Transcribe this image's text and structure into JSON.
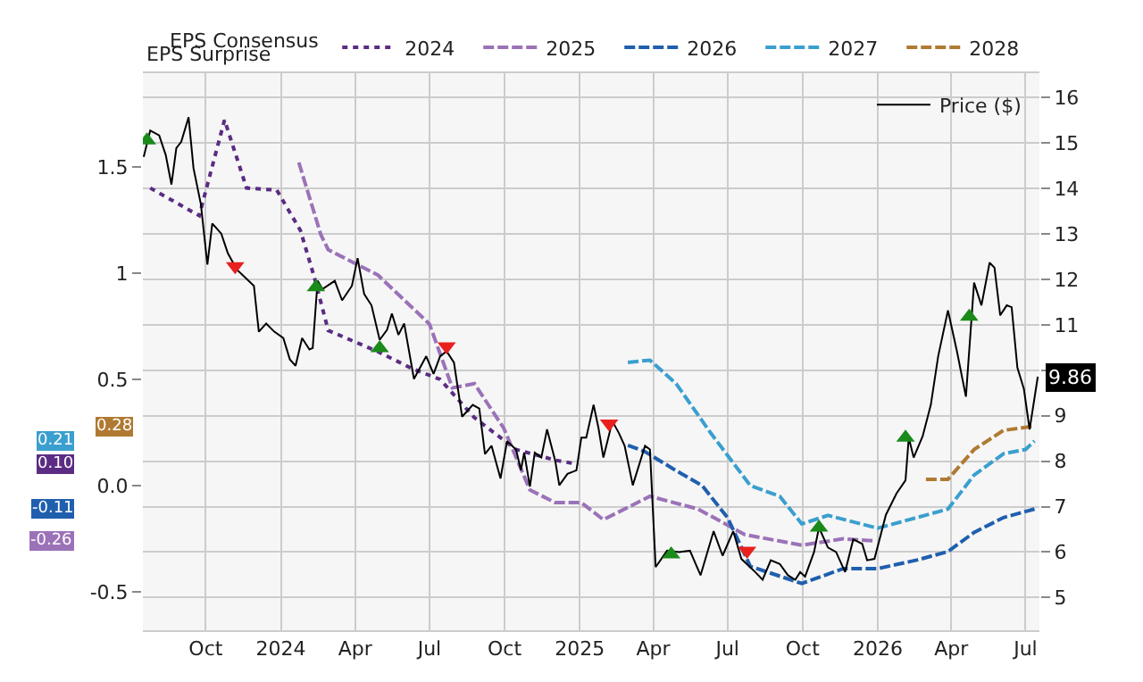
{
  "chart_data": {
    "type": "line",
    "annotations": [
      "EPS Surprise",
      "0.10",
      "-0.26",
      "-0.11",
      "0.21",
      "0.28"
    ],
    "legend_title": "EPS Consensus",
    "legend": "top",
    "grid": true,
    "xlim": [
      "2023-07-16",
      "2026-07-18"
    ],
    "xticks": [
      {
        "value": "2023-10-01",
        "label": "Oct"
      },
      {
        "value": "2024-01-01",
        "label": "2024"
      },
      {
        "value": "2024-04-01",
        "label": "Apr"
      },
      {
        "value": "2024-07-01",
        "label": "Jul"
      },
      {
        "value": "2024-10-01",
        "label": "Oct"
      },
      {
        "value": "2025-01-01",
        "label": "2025"
      },
      {
        "value": "2025-04-01",
        "label": "Apr"
      },
      {
        "value": "2025-07-01",
        "label": "Jul"
      },
      {
        "value": "2025-10-01",
        "label": "Oct"
      },
      {
        "value": "2026-01-01",
        "label": "2026"
      },
      {
        "value": "2026-04-01",
        "label": "Apr"
      },
      {
        "value": "2026-07-01",
        "label": "Jul"
      }
    ],
    "ylim": [
      -0.68,
      1.94
    ],
    "yticks": [
      -0.5,
      {
        "value": 0,
        "label": "0.0"
      },
      0.5,
      1,
      1.5
    ],
    "y2lim": [
      4.28,
      16.54
    ],
    "y2ticks": [
      5,
      6,
      7,
      8,
      9,
      {
        "value": 10,
        "label": null
      },
      11,
      12,
      13,
      14,
      15,
      16
    ],
    "series": [
      {
        "name": "2024",
        "color": "#5b2c83",
        "line_style": "dotted",
        "x": [
          "2023-07-25",
          "2023-09-23",
          "2023-10-24",
          "2023-11-20",
          "2023-12-27",
          "2024-01-25",
          "2024-02-11",
          "2024-02-28",
          "2024-04-29",
          "2024-06-10",
          "2024-07-14",
          "2024-08-25",
          "2024-10-15",
          "2024-12-02",
          "2024-12-30"
        ],
        "values": [
          1.4,
          1.27,
          1.72,
          1.4,
          1.39,
          1.2,
          0.98,
          0.73,
          0.63,
          0.55,
          0.5,
          0.32,
          0.17,
          0.12,
          0.1
        ]
      },
      {
        "name": "2025",
        "color": "#9b72b8",
        "line_style": "dashed",
        "x": [
          "2024-01-23",
          "2024-02-19",
          "2024-02-28",
          "2024-04-29",
          "2024-07-01",
          "2024-07-29",
          "2024-08-25",
          "2024-09-30",
          "2024-11-01",
          "2024-12-02",
          "2025-01-03",
          "2025-01-30",
          "2025-03-28",
          "2025-05-26",
          "2025-07-22",
          "2025-09-30",
          "2025-11-20",
          "2025-12-28"
        ],
        "values": [
          1.52,
          1.18,
          1.11,
          0.99,
          0.76,
          0.46,
          0.48,
          0.27,
          -0.02,
          -0.08,
          -0.08,
          -0.16,
          -0.05,
          -0.11,
          -0.23,
          -0.28,
          -0.25,
          -0.26
        ]
      },
      {
        "name": "2026",
        "color": "#1f5fae",
        "line_style": "dashed",
        "x": [
          "2025-03-01",
          "2025-03-22",
          "2025-04-25",
          "2025-05-31",
          "2025-07-01",
          "2025-07-29",
          "2025-09-30",
          "2025-11-20",
          "2026-01-01",
          "2026-02-18",
          "2026-03-28",
          "2026-04-29",
          "2026-06-04",
          "2026-07-12"
        ],
        "values": [
          0.19,
          0.16,
          0.08,
          0.0,
          -0.15,
          -0.38,
          -0.46,
          -0.39,
          -0.39,
          -0.35,
          -0.31,
          -0.22,
          -0.15,
          -0.11
        ]
      },
      {
        "name": "2027",
        "color": "#3a9fcf",
        "line_style": "dashed",
        "x": [
          "2025-03-01",
          "2025-03-28",
          "2025-04-29",
          "2025-06-10",
          "2025-07-29",
          "2025-09-03",
          "2025-09-30",
          "2025-11-01",
          "2026-01-01",
          "2026-02-18",
          "2026-03-28",
          "2026-04-29",
          "2026-06-04",
          "2026-07-01",
          "2026-07-12"
        ],
        "values": [
          0.58,
          0.59,
          0.48,
          0.25,
          0.0,
          -0.05,
          -0.18,
          -0.14,
          -0.2,
          -0.15,
          -0.11,
          0.05,
          0.15,
          0.17,
          0.21
        ]
      },
      {
        "name": "2028",
        "color": "#b07a32",
        "line_style": "dashed",
        "x": [
          "2026-03-01",
          "2026-03-28",
          "2026-04-29",
          "2026-06-04",
          "2026-07-12"
        ],
        "values": [
          0.03,
          0.03,
          0.17,
          0.26,
          0.28
        ]
      },
      {
        "name": "Price ($)",
        "color": "#000000",
        "axis": "y2",
        "line_style": "solid",
        "x": [
          "2023-07-17",
          "2023-07-25",
          "2023-08-05",
          "2023-08-13",
          "2023-08-20",
          "2023-08-26",
          "2023-09-01",
          "2023-09-10",
          "2023-09-16",
          "2023-09-25",
          "2023-10-03",
          "2023-10-09",
          "2023-10-20",
          "2023-10-28",
          "2023-11-08",
          "2023-11-29",
          "2023-12-05",
          "2023-12-14",
          "2023-12-24",
          "2024-01-04",
          "2024-01-12",
          "2024-01-19",
          "2024-01-27",
          "2024-02-05",
          "2024-02-09",
          "2024-02-15",
          "2024-02-21",
          "2024-03-07",
          "2024-03-16",
          "2024-03-28",
          "2024-04-04",
          "2024-04-12",
          "2024-04-21",
          "2024-05-01",
          "2024-05-10",
          "2024-05-16",
          "2024-05-24",
          "2024-05-31",
          "2024-06-12",
          "2024-06-27",
          "2024-07-06",
          "2024-07-14",
          "2024-07-22",
          "2024-07-31",
          "2024-08-10",
          "2024-08-23",
          "2024-08-31",
          "2024-09-07",
          "2024-09-15",
          "2024-09-26",
          "2024-10-04",
          "2024-10-15",
          "2024-10-21",
          "2024-10-25",
          "2024-11-01",
          "2024-11-07",
          "2024-11-15",
          "2024-11-22",
          "2024-12-02",
          "2024-12-07",
          "2024-12-17",
          "2024-12-28",
          "2025-01-03",
          "2025-01-09",
          "2025-01-18",
          "2025-01-24",
          "2025-01-30",
          "2025-02-10",
          "2025-02-18",
          "2025-02-25",
          "2025-03-07",
          "2025-03-22",
          "2025-03-28",
          "2025-04-04",
          "2025-04-18",
          "2025-05-03",
          "2025-05-16",
          "2025-05-29",
          "2025-06-14",
          "2025-06-25",
          "2025-07-08",
          "2025-07-18",
          "2025-08-04",
          "2025-08-13",
          "2025-08-23",
          "2025-09-03",
          "2025-09-13",
          "2025-09-22",
          "2025-09-28",
          "2025-10-04",
          "2025-10-15",
          "2025-10-21",
          "2025-11-01",
          "2025-11-11",
          "2025-11-22",
          "2025-12-02",
          "2025-12-13",
          "2025-12-19",
          "2025-12-28",
          "2026-01-11",
          "2026-01-24",
          "2026-02-04",
          "2026-02-08",
          "2026-02-14",
          "2026-02-25",
          "2026-03-07",
          "2026-03-16",
          "2026-03-28",
          "2026-04-08",
          "2026-04-19",
          "2026-04-29",
          "2026-05-08",
          "2026-05-18",
          "2026-05-24",
          "2026-05-31",
          "2026-06-08",
          "2026-06-14",
          "2026-06-21",
          "2026-06-29",
          "2026-07-06",
          "2026-07-16"
        ],
        "values": [
          14.7,
          15.28,
          15.17,
          14.74,
          14.09,
          14.89,
          15.03,
          15.57,
          14.45,
          13.66,
          12.33,
          13.23,
          13.01,
          12.58,
          12.22,
          11.86,
          10.85,
          11.03,
          10.85,
          10.71,
          10.24,
          10.1,
          10.71,
          10.46,
          10.49,
          11.97,
          11.79,
          11.97,
          11.54,
          11.86,
          12.47,
          11.68,
          11.43,
          10.67,
          10.89,
          11.25,
          10.78,
          11.03,
          9.81,
          10.31,
          9.92,
          10.31,
          10.42,
          10.17,
          8.98,
          9.24,
          9.16,
          8.16,
          8.34,
          7.62,
          8.44,
          8.26,
          7.8,
          8.19,
          7.44,
          8.19,
          8.08,
          8.7,
          8.01,
          7.47,
          7.72,
          7.8,
          8.52,
          8.52,
          9.24,
          8.73,
          8.08,
          8.88,
          8.62,
          8.34,
          7.47,
          8.34,
          8.26,
          5.67,
          6.03,
          6.0,
          6.03,
          5.49,
          6.46,
          5.92,
          6.46,
          5.85,
          5.56,
          5.39,
          5.82,
          5.74,
          5.49,
          5.39,
          5.56,
          5.46,
          6.0,
          6.54,
          6.1,
          6.0,
          5.56,
          6.28,
          6.18,
          5.82,
          5.85,
          6.82,
          7.29,
          7.58,
          8.52,
          8.08,
          8.55,
          9.24,
          10.31,
          11.32,
          10.42,
          9.42,
          11.93,
          11.43,
          12.37,
          12.26,
          11.21,
          11.43,
          11.39,
          10.06,
          9.59,
          8.7,
          9.86
        ],
        "value_labels": [
          null,
          null,
          null,
          null,
          null,
          null,
          null,
          null,
          null,
          null,
          null,
          null,
          null,
          null,
          null,
          null,
          null,
          null,
          null,
          null,
          null,
          null,
          null,
          null,
          null,
          null,
          null,
          null,
          null,
          null,
          null,
          null,
          null,
          null,
          null,
          null,
          null,
          null,
          null,
          null,
          null,
          null,
          null,
          null,
          null,
          null,
          null,
          null,
          null,
          null,
          null,
          null,
          null,
          null,
          null,
          null,
          null,
          null,
          null,
          null,
          null,
          null,
          null,
          null,
          null,
          null,
          null,
          null,
          null,
          null,
          null,
          null,
          null,
          null,
          null,
          null,
          null,
          null,
          null,
          null,
          null,
          null,
          null,
          null,
          null,
          null,
          null,
          null,
          null,
          null,
          null,
          null,
          null,
          null,
          null,
          null,
          null,
          null,
          null,
          null,
          null,
          null,
          null,
          null,
          null,
          null,
          null,
          null,
          null,
          null,
          null,
          null,
          null,
          null,
          null,
          null,
          null,
          null,
          null,
          null,
          "9.86"
        ]
      },
      {
        "type": "scatter",
        "color": "#1a8a1a",
        "axis": "y2",
        "marker": "triangle",
        "x": [
          "2023-07-21",
          "2024-02-13",
          "2024-05-01",
          "2025-04-23",
          "2025-10-21",
          "2026-02-04",
          "2026-04-23"
        ],
        "values": [
          15.06,
          11.83,
          10.49,
          5.95,
          6.54,
          8.52,
          11.18
        ]
      },
      {
        "type": "scatter",
        "color": "#e8211e",
        "axis": "y2",
        "marker": "triangle",
        "x": [
          "2023-11-06",
          "2024-07-22",
          "2025-02-06",
          "2025-07-25"
        ],
        "values": [
          12.29,
          10.53,
          8.83,
          6.03
        ]
      }
    ]
  }
}
